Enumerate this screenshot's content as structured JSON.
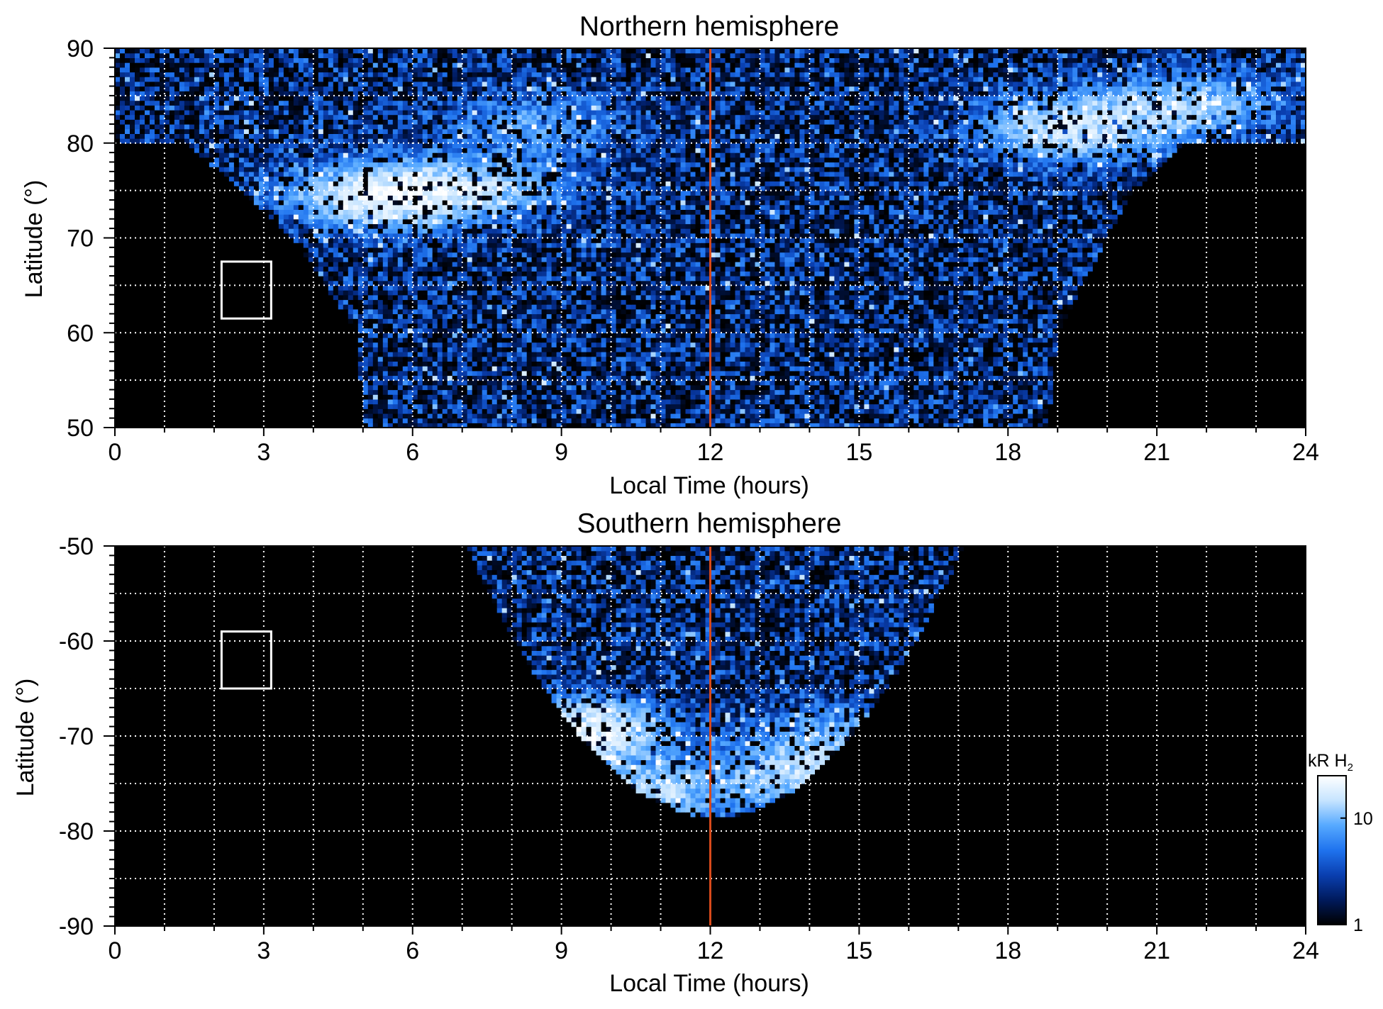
{
  "colors": {
    "background": "#000000",
    "grid": "#ffffff",
    "noon_line": "#d84a1b",
    "box": "#ffffff",
    "colormap": [
      "#000000",
      "#001a5c",
      "#0a3fb0",
      "#1f73ee",
      "#56a9ff",
      "#c6e4ff",
      "#ffffff"
    ]
  },
  "chart_data": [
    {
      "type": "heatmap",
      "title": "Northern hemisphere",
      "xlabel": "Local Time (hours)",
      "ylabel": "Latitude (°)",
      "xlim": [
        0,
        24
      ],
      "ylim": [
        50,
        90
      ],
      "xticks": [
        0,
        3,
        6,
        9,
        12,
        15,
        18,
        21,
        24
      ],
      "yticks": [
        50,
        60,
        70,
        80,
        90
      ],
      "grid_x_step": 1,
      "grid_y_step": 5,
      "reference_line_x": 12,
      "reference_box": {
        "x": [
          2.15,
          3.15
        ],
        "y": [
          61.5,
          67.5
        ]
      },
      "emission_region": {
        "polar_cap_min_lat": 80,
        "dawn_edge_lt": [
          [
            50,
            5.0
          ],
          [
            60,
            4.9
          ],
          [
            70,
            3.6
          ],
          [
            75,
            2.6
          ],
          [
            80,
            1.4
          ]
        ],
        "dusk_edge_lt": [
          [
            50,
            18.8
          ],
          [
            60,
            19.0
          ],
          [
            70,
            20.0
          ],
          [
            75,
            20.5
          ],
          [
            80,
            21.6
          ]
        ],
        "bright_spots": [
          {
            "lt": 5.5,
            "lat": 74.5,
            "intensity": 22
          },
          {
            "lt": 7.5,
            "lat": 75.5,
            "intensity": 10
          },
          {
            "lt": 19.2,
            "lat": 81.5,
            "intensity": 16
          },
          {
            "lt": 21.5,
            "lat": 84.0,
            "intensity": 12
          },
          {
            "lt": 8.5,
            "lat": 82.0,
            "intensity": 6
          }
        ]
      }
    },
    {
      "type": "heatmap",
      "title": "Southern hemisphere",
      "xlabel": "Local Time (hours)",
      "ylabel": "Latitude (°)",
      "xlim": [
        0,
        24
      ],
      "ylim": [
        -90,
        -50
      ],
      "xticks": [
        0,
        3,
        6,
        9,
        12,
        15,
        18,
        21,
        24
      ],
      "yticks": [
        -90,
        -80,
        -70,
        -60,
        -50
      ],
      "grid_x_step": 1,
      "grid_y_step": 5,
      "reference_line_x": 12,
      "reference_box": {
        "x": [
          2.15,
          3.15
        ],
        "y": [
          -65,
          -59
        ]
      },
      "emission_region": {
        "center_lt": 12.1,
        "top_half_width_lt": 5.0,
        "bottom_lat": -78.5,
        "bright_spots": [
          {
            "lt": 9.3,
            "lat": -69.5,
            "intensity": 22
          },
          {
            "lt": 10.5,
            "lat": -76.0,
            "intensity": 14
          },
          {
            "lt": 13.8,
            "lat": -74.0,
            "intensity": 12
          },
          {
            "lt": 14.8,
            "lat": -70.0,
            "intensity": 8
          }
        ]
      }
    }
  ],
  "colorbar": {
    "label": "kR H",
    "label_subscript": "2",
    "scale": "log",
    "range": [
      1,
      25
    ],
    "ticks": [
      {
        "value": 1,
        "label": "1"
      },
      {
        "value": 10,
        "label": "10"
      }
    ]
  }
}
